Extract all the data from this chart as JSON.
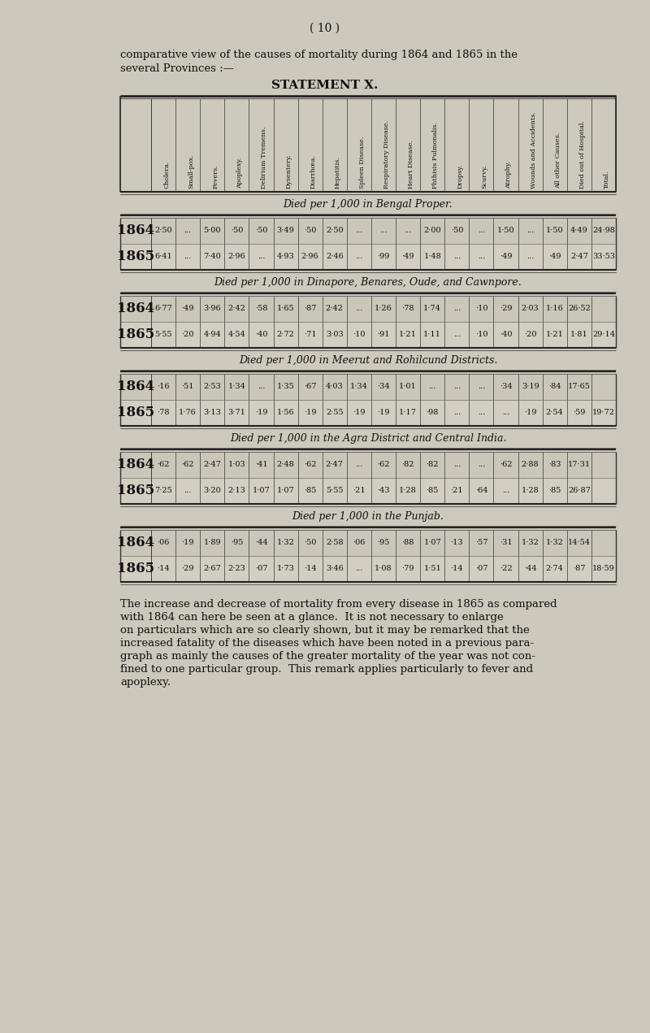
{
  "page_number": "( 10 )",
  "intro_line1": "comparative view of the causes of mortality during 1864 and 1865 in the",
  "intro_line2": "several Provinces :—",
  "statement_title": "STATEMENT X.",
  "column_headers": [
    "Cholera.",
    "Small-pox.",
    "Fevers.",
    "Apoplexy.",
    "Delirium Tremens.",
    "Dysentery.",
    "Diarrhœa.",
    "Hepatitis.",
    "Spleen Disease.",
    "Respiratory Disease.",
    "Heart Disease.",
    "Phthisis Pulmonalis.",
    "Dropsy.",
    "Scurvy.",
    "Atrophy.",
    "Wounds and Accidents.",
    "All other Causes.",
    "Died out of Hospital.",
    "Total."
  ],
  "sections": [
    {
      "section_title": "Died per 1,000 in Bengal Proper.",
      "rows": [
        {
          "year": "1864",
          "values": [
            "2·50",
            "...",
            "5·00",
            "·50",
            "·50",
            "3·49",
            "·50",
            "2·50",
            "...",
            "...",
            "...",
            "2·00",
            "·50",
            "...",
            "1·50",
            "...",
            "1·50",
            "4·49",
            "24·98"
          ]
        },
        {
          "year": "1865",
          "values": [
            "6·41",
            "...",
            "7·40",
            "2·96",
            "...",
            "4·93",
            "2·96",
            "2·46",
            "...",
            "·99",
            "·49",
            "1·48",
            "...",
            "...",
            "·49",
            "...",
            "·49",
            "2·47",
            "33·53"
          ]
        }
      ]
    },
    {
      "section_title": "Died per 1,000 in Dinapore, Benares, Oude, and Cawnpore.",
      "rows": [
        {
          "year": "1864",
          "values": [
            "6·77",
            "·49",
            "3·96",
            "2·42",
            "·58",
            "1·65",
            "·87",
            "2·42",
            "...",
            "1·26",
            "·78",
            "1·74",
            "...",
            "·10",
            "·29",
            "2·03",
            "1·16",
            "26·52"
          ]
        },
        {
          "year": "1865",
          "values": [
            "5·55",
            "·20",
            "4·94",
            "4·54",
            "·40",
            "2·72",
            "·71",
            "3·03",
            "·10",
            "·91",
            "1·21",
            "1·11",
            "...",
            "·10",
            "·40",
            "·20",
            "1·21",
            "1·81",
            "29·14"
          ]
        }
      ]
    },
    {
      "section_title": "Died per 1,000 in Meerut and Rohilcund Districts.",
      "rows": [
        {
          "year": "1864",
          "values": [
            "·16",
            "·51",
            "2·53",
            "1·34",
            "...",
            "1·35",
            "·67",
            "4·03",
            "1·34",
            "·34",
            "1·01",
            "...",
            "...",
            "...",
            "·34",
            "3·19",
            "·84",
            "17·65"
          ]
        },
        {
          "year": "1865",
          "values": [
            "·78",
            "1·76",
            "3·13",
            "3·71",
            "·19",
            "1·56",
            "·19",
            "2·55",
            "·19",
            "·19",
            "1·17",
            "·98",
            "...",
            "...",
            "...",
            "·19",
            "2·54",
            "·59",
            "19·72"
          ]
        }
      ]
    },
    {
      "section_title": "Died per 1,000 in the Agra District and Central India.",
      "rows": [
        {
          "year": "1864",
          "values": [
            "·62",
            "·62",
            "2·47",
            "1·03",
            "·41",
            "2·48",
            "·62",
            "2·47",
            "...",
            "·62",
            "·82",
            "·82",
            "...",
            "...",
            "·62",
            "2·88",
            "·83",
            "17·31"
          ]
        },
        {
          "year": "1865",
          "values": [
            "7·25",
            "...",
            "3·20",
            "2·13",
            "1·07",
            "1·07",
            "·85",
            "5·55",
            "·21",
            "·43",
            "1·28",
            "·85",
            "·21",
            "·64",
            "...",
            "1·28",
            "·85",
            "26·87"
          ]
        }
      ]
    },
    {
      "section_title": "Died per 1,000 in the Punjab.",
      "rows": [
        {
          "year": "1864",
          "values": [
            "·06",
            "·19",
            "1·89",
            "·95",
            "·44",
            "1·32",
            "·50",
            "2·58",
            "·06",
            "·95",
            "·88",
            "1·07",
            "·13",
            "·57",
            "·31",
            "1·32",
            "1·32",
            "14·54"
          ]
        },
        {
          "year": "1865",
          "values": [
            "·14",
            "·29",
            "2·67",
            "2·23",
            "·07",
            "1·73",
            "·14",
            "3·46",
            "...",
            "1·08",
            "·79",
            "1·51",
            "·14",
            "·07",
            "·22",
            "·44",
            "2·74",
            "·87",
            "18·59"
          ]
        }
      ]
    }
  ],
  "footer_lines": [
    "The increase and decrease of mortality from every disease in 1865 as compared",
    "with 1864 can here be seen at a glance.  It is not necessary to enlarge",
    "on particulars which are so clearly shown, but it may be remarked that the",
    "increased fatality of the diseases which have been noted in a previous para-",
    "graph as mainly the causes of the greater mortality of the year was not con-",
    "fined to one particular group.  This remark applies particularly to fever and",
    "apoplexy."
  ],
  "bg_color": "#ccc8bc",
  "text_color": "#111111"
}
